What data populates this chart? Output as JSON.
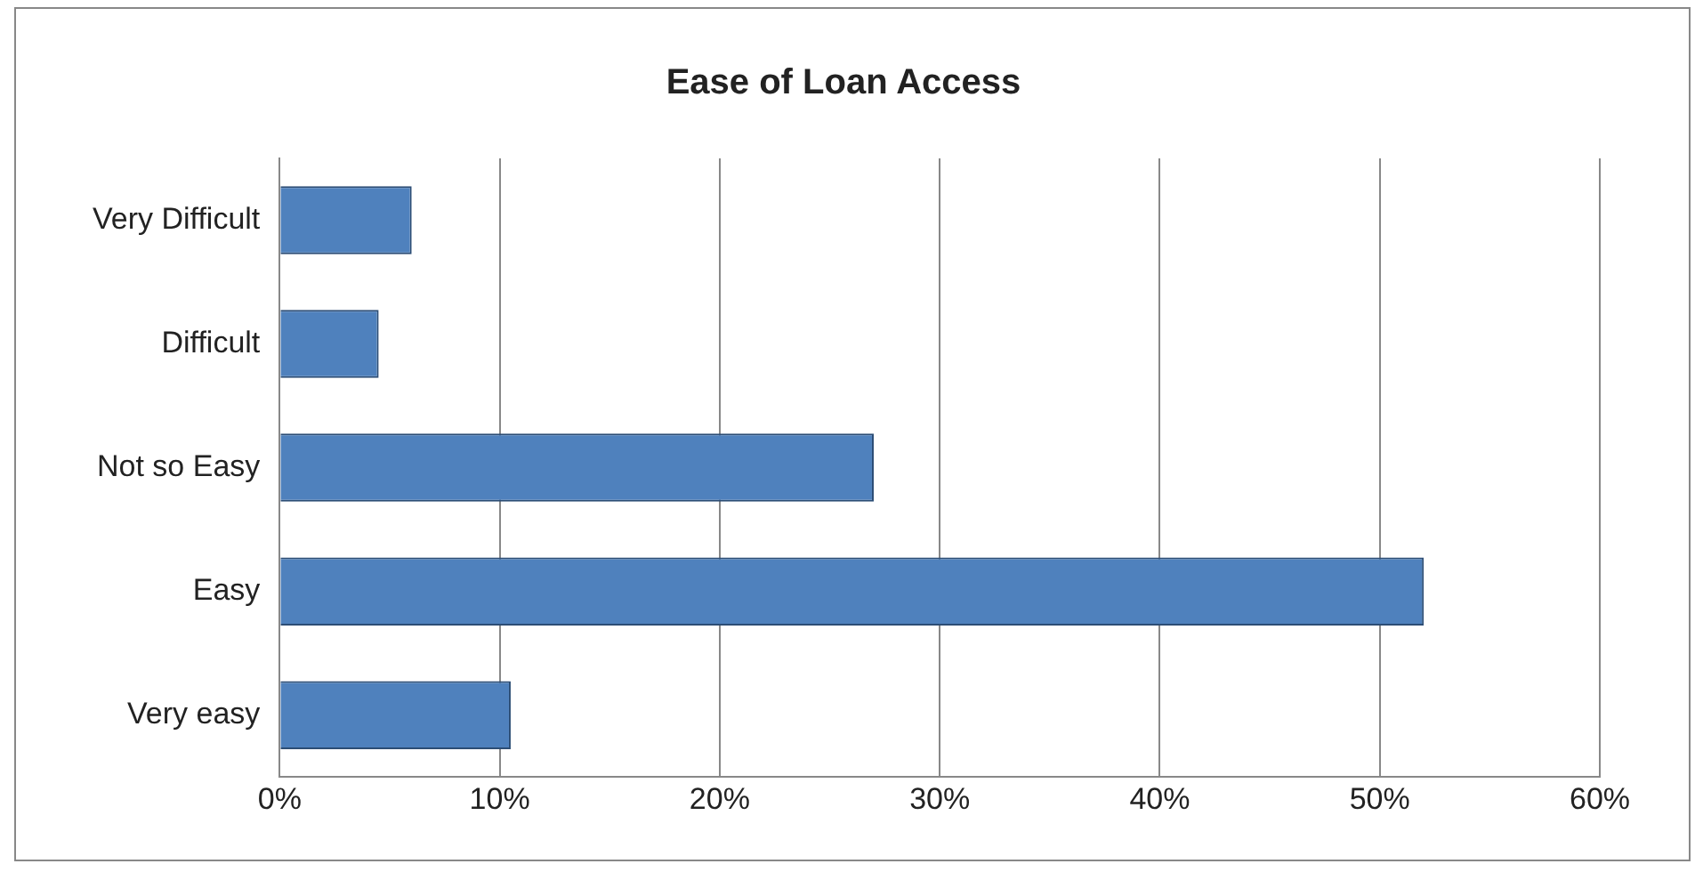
{
  "chart_data": {
    "type": "bar",
    "orientation": "horizontal",
    "title": "Ease of Loan Access",
    "categories": [
      "Very Difficult",
      "Difficult",
      "Not so Easy",
      "Easy",
      "Very easy"
    ],
    "values": [
      6,
      4.5,
      27,
      52,
      10.5
    ],
    "color": "#4f81bd",
    "xlim": [
      0,
      60
    ],
    "xticks": [
      {
        "value": 0,
        "label": "0%"
      },
      {
        "value": 10,
        "label": "10%"
      },
      {
        "value": 20,
        "label": "20%"
      },
      {
        "value": 30,
        "label": "30%"
      },
      {
        "value": 40,
        "label": "40%"
      },
      {
        "value": 50,
        "label": "50%"
      },
      {
        "value": 60,
        "label": "60%"
      }
    ],
    "grid": "x",
    "legend": false
  }
}
